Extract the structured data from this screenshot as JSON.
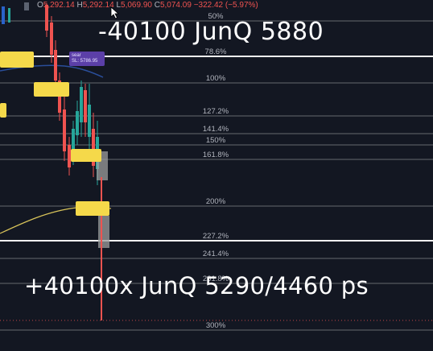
{
  "ohlc": {
    "o_key": "O",
    "o_val": "5,292.14",
    "h_key": "H",
    "h_val": "5,292.14",
    "l_key": "L",
    "l_val": "5,069.90",
    "c_key": "C",
    "c_val": "5,074.09",
    "change": "−322.42 (−5.97%)"
  },
  "overlay": {
    "top_text": "-40100 JunQ 5880",
    "bottom_text": "+40100x JunQ 5290/4460 ps"
  },
  "tags": {
    "purple_line1": "sear",
    "purple_line2": "SL: 5786.95"
  },
  "colors": {
    "background": "#131722",
    "up_candle": "#26a69a",
    "down_candle": "#ef5350",
    "fib_line": "#ffffff",
    "ma_yellow": "#d9c45a",
    "ma_blue": "#2a4e9a",
    "label_yellow": "#f5d94a",
    "label_purple": "#5b3fa8"
  },
  "chart_data": {
    "type": "candlestick",
    "title": "",
    "fib_levels": [
      {
        "label": "50%"
      },
      {
        "label": "78.6%"
      },
      {
        "label": "100%"
      },
      {
        "label": "127.2%"
      },
      {
        "label": "141.4%"
      },
      {
        "label": "150%"
      },
      {
        "label": "161.8%"
      },
      {
        "label": "200%"
      },
      {
        "label": "227.2%"
      },
      {
        "label": "241.4%"
      },
      {
        "label": "261.8%"
      },
      {
        "label": "300%"
      }
    ]
  }
}
